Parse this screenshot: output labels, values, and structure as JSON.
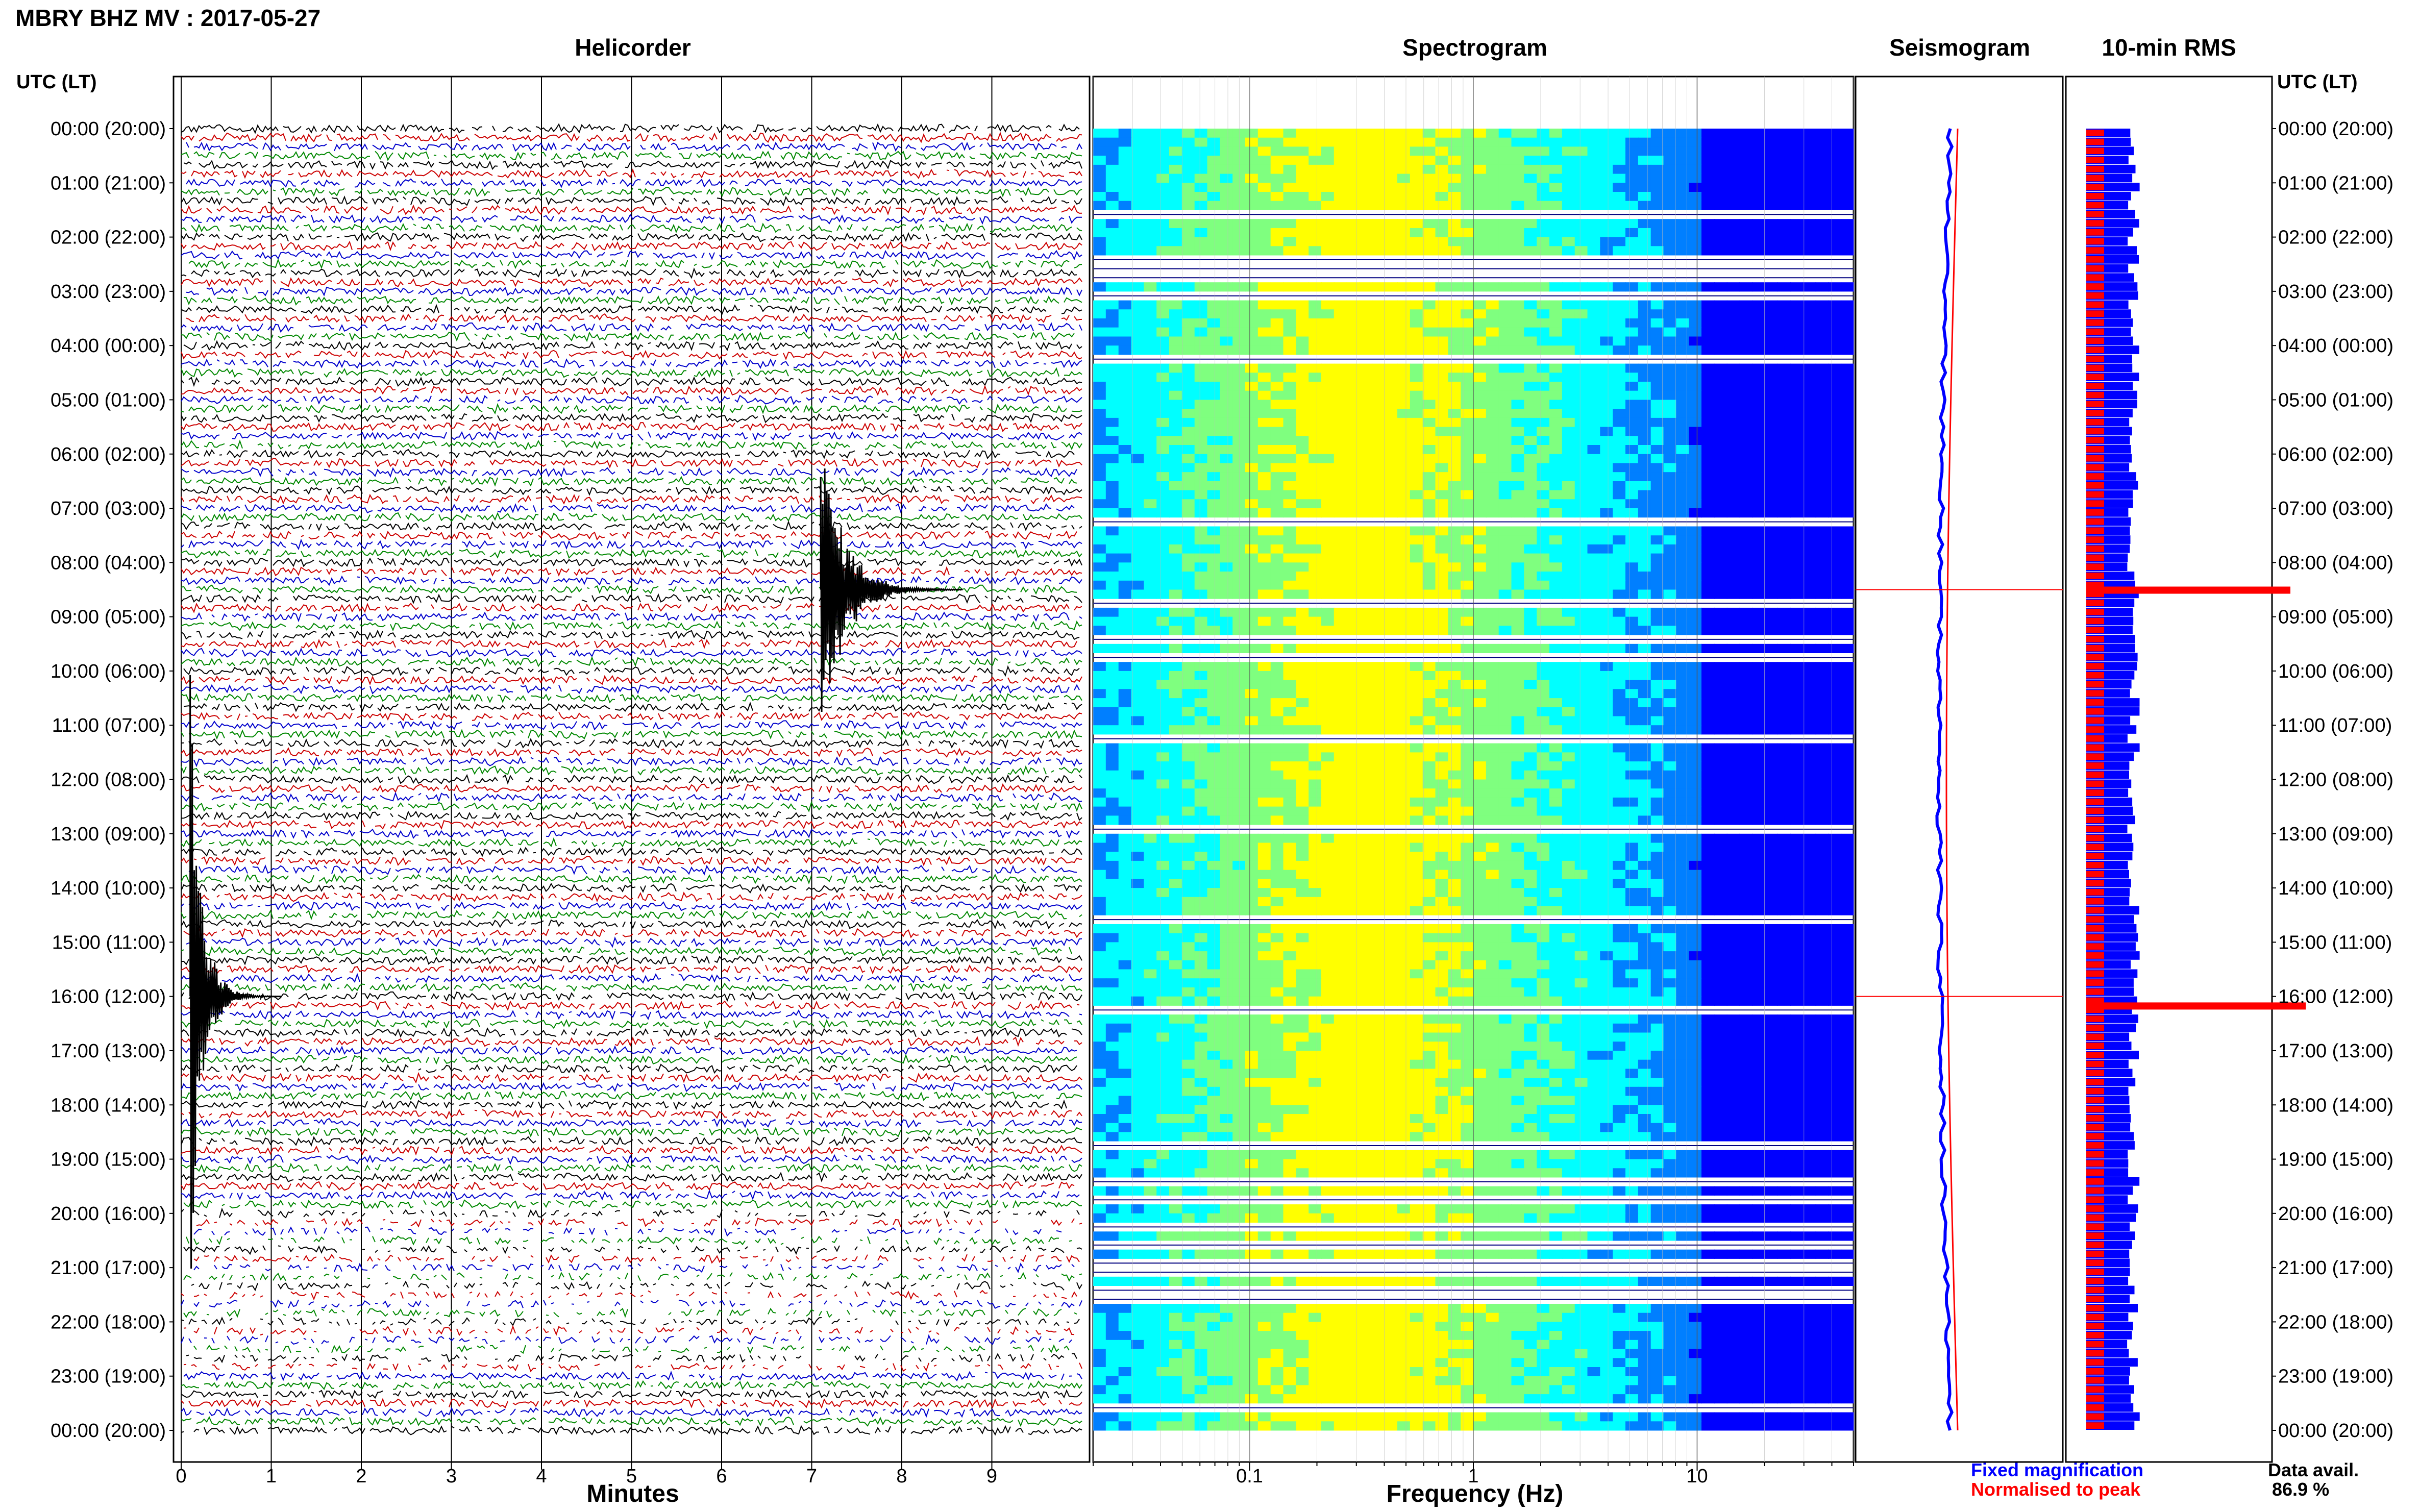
{
  "header": {
    "title": "MBRY BHZ MV : 2017-05-27"
  },
  "panels": {
    "helicorder": "Helicorder",
    "spectrogram": "Spectrogram",
    "seismogram": "Seismogram",
    "rms": "10-min RMS"
  },
  "axes": {
    "utc_label_left": "UTC (LT)",
    "utc_label_right": "UTC (LT)",
    "minutes_label": "Minutes",
    "frequency_label": "Frequency (Hz)"
  },
  "legend": {
    "fixed": "Fixed magnification",
    "normalised": "Normalised to peak",
    "fixed_color": "#0000ff",
    "normalised_color": "#ff0000"
  },
  "availability": {
    "label": "Data avail.",
    "value": "86.9 %"
  },
  "colors": {
    "trace_cycle": [
      "#000000",
      "#cc0000",
      "#0000cc",
      "#008800"
    ],
    "spectrogram_low": "#00007f",
    "spectrogram_high": "#ffff00",
    "rms_fixed": "#0000ff",
    "rms_norm": "#ff0000"
  },
  "chart_data": [
    {
      "type": "line",
      "name": "helicorder",
      "xlabel": "Minutes",
      "xticks": [
        "0",
        "1",
        "2",
        "3",
        "4",
        "5",
        "6",
        "7",
        "8",
        "9"
      ],
      "xlim": [
        0,
        10
      ],
      "hour_labels": [
        "00:00 (20:00)",
        "01:00 (21:00)",
        "02:00 (22:00)",
        "03:00 (23:00)",
        "04:00 (00:00)",
        "05:00 (01:00)",
        "06:00 (02:00)",
        "07:00 (03:00)",
        "08:00 (04:00)",
        "09:00 (05:00)",
        "10:00 (06:00)",
        "11:00 (07:00)",
        "12:00 (08:00)",
        "13:00 (09:00)",
        "14:00 (10:00)",
        "15:00 (11:00)",
        "16:00 (12:00)",
        "17:00 (13:00)",
        "18:00 (14:00)",
        "19:00 (15:00)",
        "20:00 (16:00)",
        "21:00 (17:00)",
        "22:00 (18:00)",
        "23:00 (19:00)",
        "00:00 (20:00)"
      ],
      "lines_per_hour": 6,
      "events": [
        {
          "time": "08:30",
          "minute": 7.1,
          "description": "large event"
        },
        {
          "time": "16:00",
          "minute": 0.1,
          "description": "large event"
        }
      ]
    },
    {
      "type": "heatmap",
      "name": "spectrogram",
      "xlabel": "Frequency (Hz)",
      "xscale": "log",
      "xlim": [
        0.02,
        50
      ],
      "xticks": [
        "0.1",
        "1",
        "10"
      ],
      "peak_band_hz": [
        0.2,
        0.5
      ]
    },
    {
      "type": "line",
      "name": "seismogram"
    },
    {
      "type": "bar",
      "name": "10-min RMS",
      "series": [
        {
          "name": "Fixed magnification",
          "color": "#0000ff"
        },
        {
          "name": "Normalised to peak",
          "color": "#ff0000"
        }
      ],
      "spikes": [
        "08:30",
        "16:10"
      ]
    }
  ]
}
